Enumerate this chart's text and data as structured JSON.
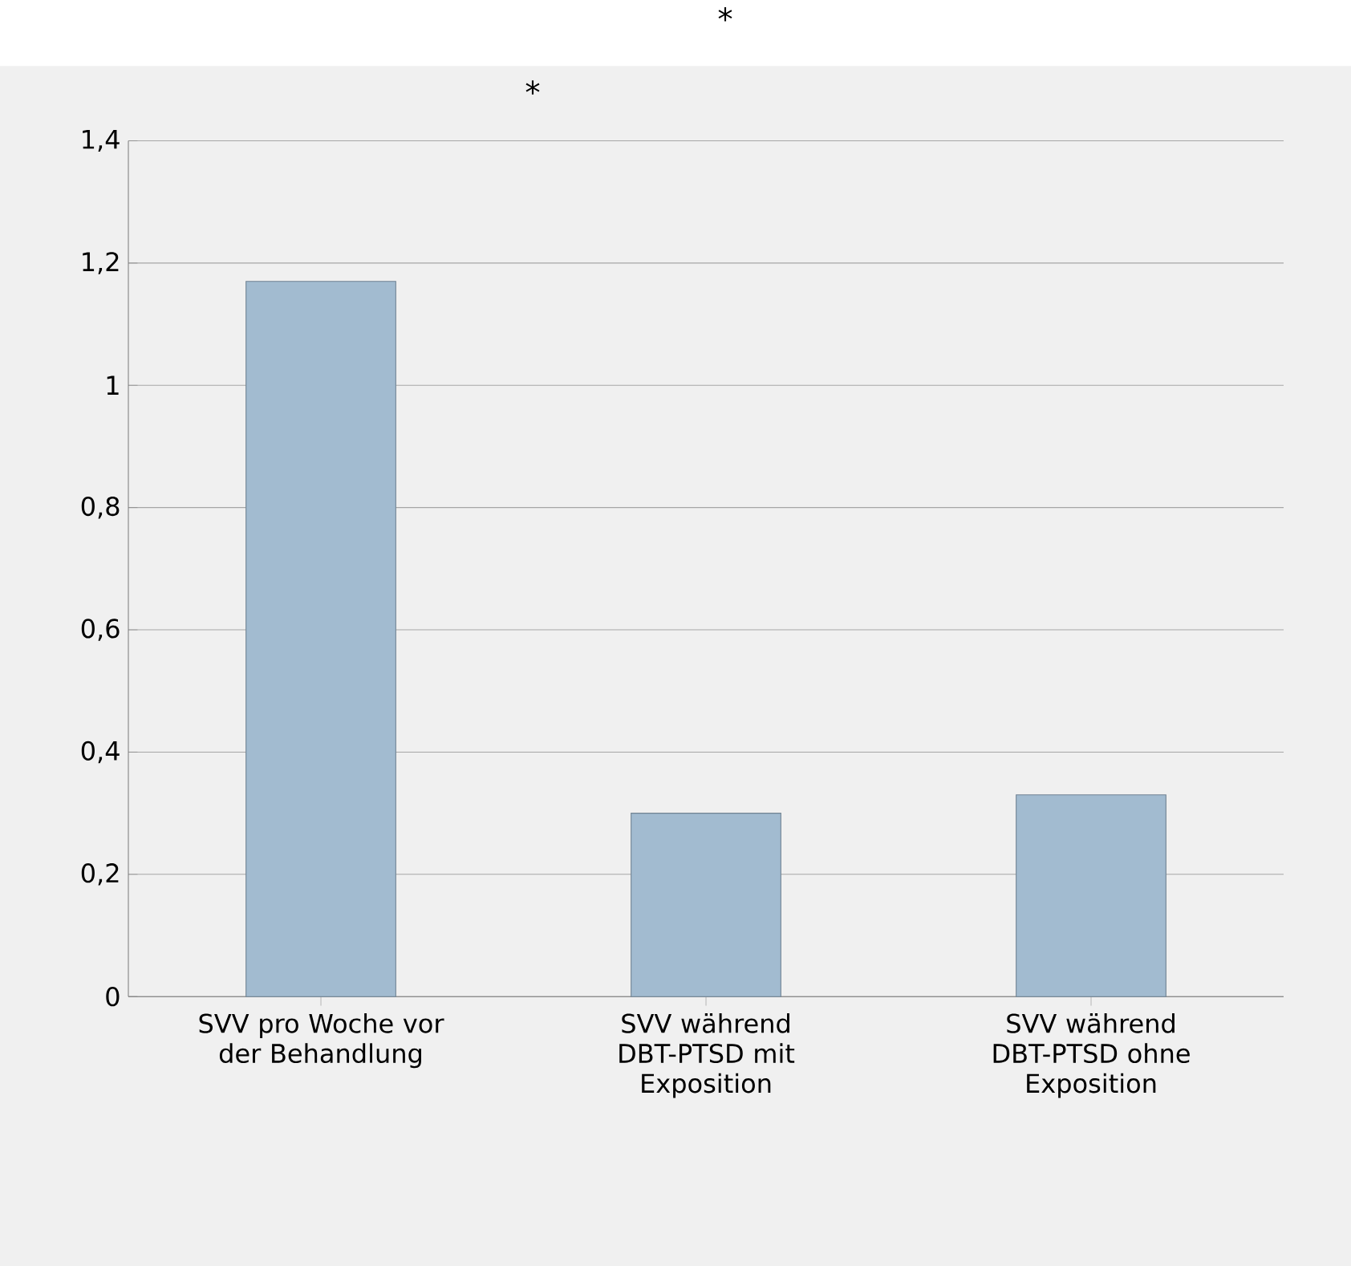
{
  "chart_data": {
    "type": "bar",
    "categories": [
      "SVV pro Woche vor der Behandlung",
      "SVV während DBT-PTSD mit Exposition",
      "SVV während DBT-PTSD ohne Exposition"
    ],
    "values": [
      1.17,
      0.3,
      0.33
    ],
    "color": "#a2bbd0",
    "ylim": [
      0,
      1.4
    ],
    "yticks": [
      0,
      {
        "value": 0.2,
        "label": "0,2"
      },
      {
        "value": 0.4,
        "label": "0,4"
      },
      {
        "value": 0.6,
        "label": "0,6"
      },
      {
        "value": 0.8,
        "label": "0,8"
      },
      1,
      {
        "value": 1.2,
        "label": "1,2"
      },
      {
        "value": 1.4,
        "label": "1,4"
      }
    ],
    "grid": "y",
    "annotations": [
      "*",
      "*"
    ]
  }
}
